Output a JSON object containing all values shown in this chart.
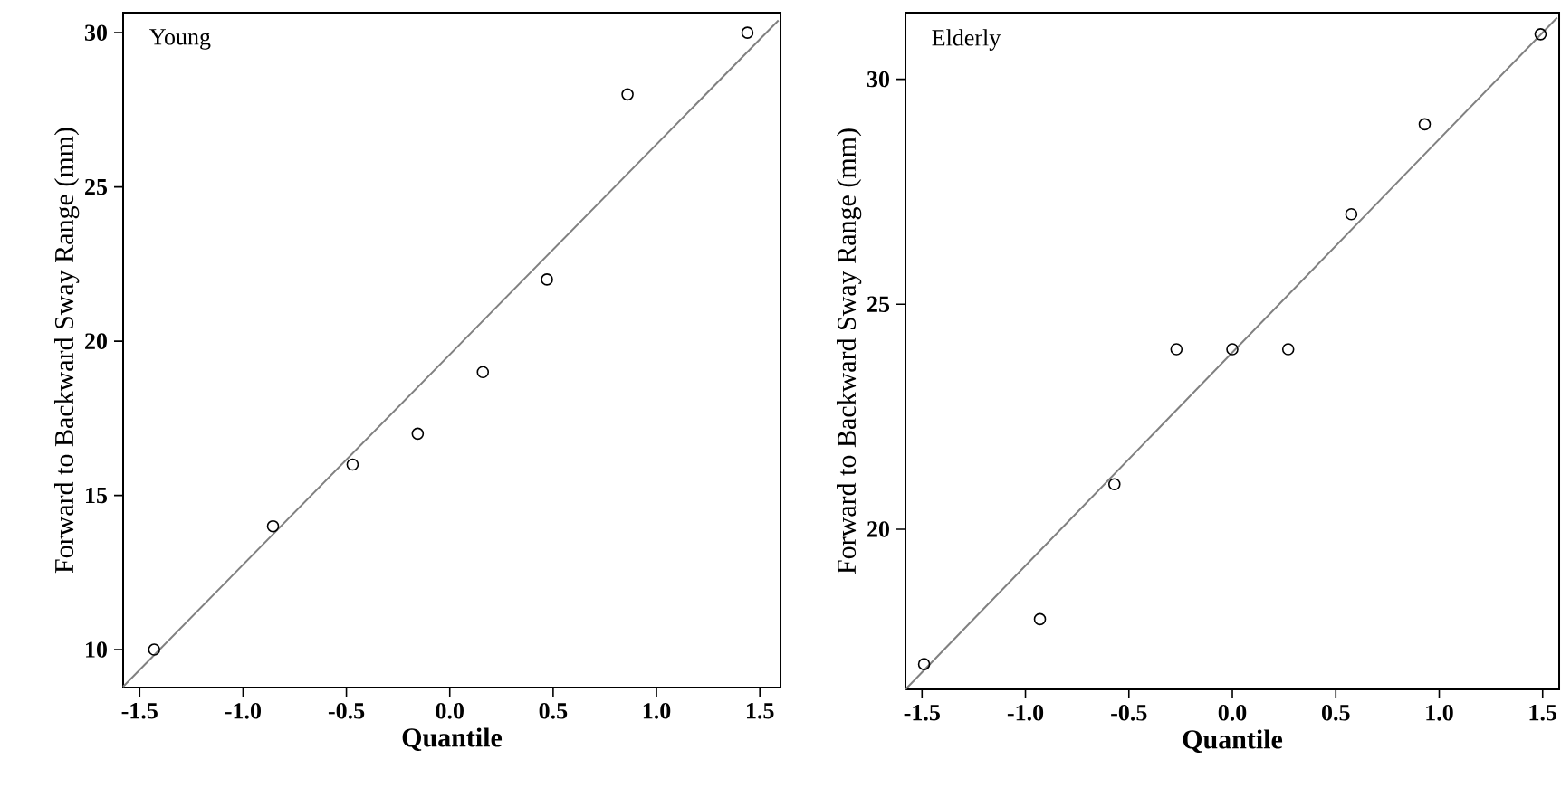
{
  "chart_data": [
    {
      "type": "scatter",
      "xlabel": "Quantile",
      "ylabel": "Forward to Backward Sway Range (mm)",
      "annotations": [
        "Young"
      ],
      "grid": false,
      "xlim": [
        -1.58,
        1.6
      ],
      "ylim": [
        8.77,
        30.65
      ],
      "xticks": [
        -1.5,
        {
          "value": -1,
          "label": "-1.0"
        },
        -0.5,
        {
          "value": 0,
          "label": "0.0"
        },
        0.5,
        {
          "value": 1,
          "label": "1.0"
        },
        1.5
      ],
      "yticks": [
        10,
        15,
        20,
        25,
        30
      ],
      "series": [
        {
          "color": "#000000",
          "marker": "circle",
          "x": [
            -1.43,
            -0.855,
            -0.47,
            -0.155,
            0.16,
            0.47,
            0.86,
            1.44
          ],
          "values": [
            10,
            14,
            16,
            17,
            19,
            22,
            28,
            30
          ]
        },
        {
          "type": "line",
          "color": "#808080",
          "marker": "none",
          "line_style": "solid",
          "x": [
            -1.58,
            1.59
          ],
          "values": [
            8.8,
            30.4
          ]
        }
      ]
    },
    {
      "type": "scatter",
      "xlabel": "Quantile",
      "ylabel": "Forward to Backward Sway Range (mm)",
      "annotations": [
        "Elderly"
      ],
      "grid": false,
      "xlim": [
        -1.58,
        1.58
      ],
      "ylim": [
        16.44,
        31.48
      ],
      "xticks": [
        -1.5,
        {
          "value": -1,
          "label": "-1.0"
        },
        -0.5,
        {
          "value": 0,
          "label": "0.0"
        },
        0.5,
        {
          "value": 1,
          "label": "1.0"
        },
        1.5
      ],
      "yticks": [
        20,
        25,
        30
      ],
      "series": [
        {
          "color": "#000000",
          "marker": "circle",
          "x": [
            -1.49,
            -0.93,
            -0.57,
            -0.27,
            0.0,
            0.27,
            0.575,
            0.93,
            1.49
          ],
          "values": [
            17,
            18,
            21,
            24,
            24,
            24,
            27,
            29,
            31
          ]
        },
        {
          "type": "line",
          "color": "#808080",
          "marker": "none",
          "line_style": "solid",
          "x": [
            -1.58,
            1.57
          ],
          "values": [
            16.44,
            31.37
          ]
        }
      ]
    }
  ]
}
